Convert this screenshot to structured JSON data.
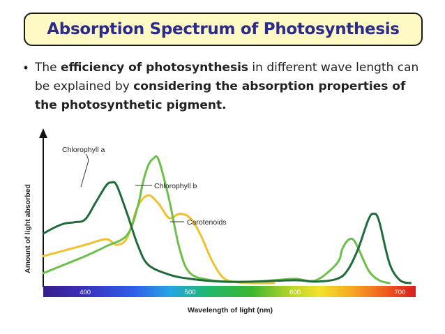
{
  "slide": {
    "title": "Absorption Spectrum of Photosynthesis",
    "bullet": {
      "p1": "The ",
      "b1": "efficiency of photosynthesis",
      "p2": " in different wave length can be explained by ",
      "b2": "considering the absorption properties of the photosynthetic pigment."
    }
  },
  "colors": {
    "chlorophyll_a": "#1f6b3a",
    "chlorophyll_b": "#6cc04a",
    "carotenoids": "#f2c12e",
    "title_bg": "#fff9c4",
    "title_text": "#2b2b8a"
  },
  "chart_data": {
    "type": "line",
    "title": "",
    "xlabel": "Wavelength of light (nm)",
    "ylabel": "Amount of light absorbed",
    "xlim": [
      360,
      715
    ],
    "ylim": [
      0,
      1
    ],
    "xticks": [
      400,
      500,
      600,
      700
    ],
    "spectrum_bar": true,
    "legend": "inline annotations",
    "series": [
      {
        "name": "Chlorophyll a",
        "x": [
          360,
          370,
          380,
          390,
          400,
          410,
          420,
          425,
          430,
          440,
          450,
          460,
          480,
          500,
          530,
          560,
          600,
          620,
          640,
          650,
          660,
          670,
          675,
          680,
          690,
          700,
          710
        ],
        "y": [
          0.36,
          0.4,
          0.43,
          0.44,
          0.46,
          0.58,
          0.7,
          0.72,
          0.7,
          0.5,
          0.28,
          0.14,
          0.07,
          0.04,
          0.02,
          0.02,
          0.03,
          0.02,
          0.04,
          0.1,
          0.25,
          0.46,
          0.5,
          0.45,
          0.15,
          0.03,
          0.01
        ]
      },
      {
        "name": "Chlorophyll b",
        "x": [
          360,
          380,
          400,
          420,
          440,
          450,
          455,
          460,
          465,
          470,
          480,
          490,
          500,
          520,
          540,
          560,
          580,
          600,
          620,
          640,
          645,
          650,
          655,
          660,
          670,
          680,
          690
        ],
        "y": [
          0.08,
          0.14,
          0.2,
          0.27,
          0.35,
          0.55,
          0.72,
          0.84,
          0.89,
          0.88,
          0.6,
          0.25,
          0.08,
          0.03,
          0.02,
          0.02,
          0.03,
          0.04,
          0.03,
          0.15,
          0.25,
          0.31,
          0.32,
          0.26,
          0.1,
          0.03,
          0.01
        ]
      },
      {
        "name": "Carotenoids",
        "x": [
          360,
          380,
          400,
          420,
          430,
          440,
          450,
          460,
          470,
          480,
          490,
          500,
          510,
          520,
          530,
          540,
          560,
          580
        ],
        "y": [
          0.2,
          0.24,
          0.28,
          0.32,
          0.28,
          0.33,
          0.55,
          0.63,
          0.57,
          0.47,
          0.5,
          0.47,
          0.35,
          0.18,
          0.06,
          0.02,
          0.01,
          0.01
        ]
      }
    ]
  }
}
